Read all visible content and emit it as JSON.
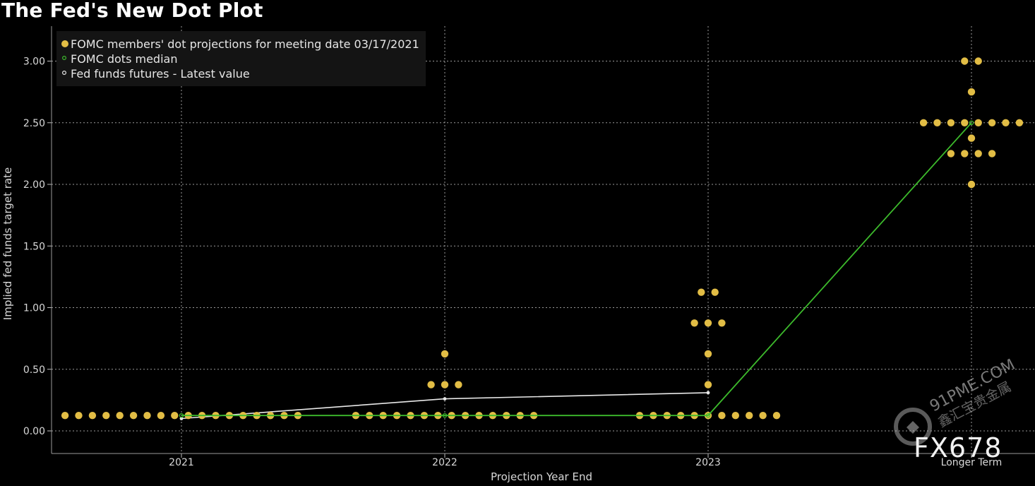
{
  "chart_data": {
    "type": "scatter",
    "title": "The Fed's New Dot Plot",
    "xlabel": "Projection Year End",
    "ylabel": "Implied fed funds target rate",
    "categories": [
      "2021",
      "2022",
      "2023",
      "Longer Term"
    ],
    "ylim": [
      0,
      3.25
    ],
    "yticks": [
      "0.00",
      "0.50",
      "1.00",
      "1.50",
      "2.00",
      "2.50",
      "3.00"
    ],
    "grid": true,
    "legend_position": "top-left",
    "series": [
      {
        "name": "FOMC members' dot projections for meeting date 03/17/2021",
        "marker": "dot",
        "color": "#e2bd45",
        "points": [
          {
            "category": "2021",
            "y": 0.125,
            "count": 18
          },
          {
            "category": "2022",
            "y": 0.125,
            "count": 14
          },
          {
            "category": "2022",
            "y": 0.375,
            "count": 3
          },
          {
            "category": "2022",
            "y": 0.625,
            "count": 1
          },
          {
            "category": "2023",
            "y": 0.125,
            "count": 11
          },
          {
            "category": "2023",
            "y": 0.375,
            "count": 1
          },
          {
            "category": "2023",
            "y": 0.625,
            "count": 1
          },
          {
            "category": "2023",
            "y": 0.875,
            "count": 3
          },
          {
            "category": "2023",
            "y": 1.125,
            "count": 2
          },
          {
            "category": "Longer Term",
            "y": 2.0,
            "count": 1
          },
          {
            "category": "Longer Term",
            "y": 2.25,
            "count": 4
          },
          {
            "category": "Longer Term",
            "y": 2.375,
            "count": 1
          },
          {
            "category": "Longer Term",
            "y": 2.5,
            "count": 8
          },
          {
            "category": "Longer Term",
            "y": 2.75,
            "count": 1
          },
          {
            "category": "Longer Term",
            "y": 3.0,
            "count": 2
          }
        ]
      },
      {
        "name": "FOMC dots median",
        "marker": "line",
        "color": "#3dbb2c",
        "values": [
          0.125,
          0.125,
          0.125,
          2.5
        ]
      },
      {
        "name": "Fed funds futures - Latest value",
        "marker": "line",
        "color": "#e8e8e8",
        "values": [
          0.1,
          0.26,
          0.31
        ]
      }
    ]
  },
  "watermark": {
    "brand": "FX678",
    "site": "91PME.COM",
    "cn": "鑫汇宝贵金属"
  },
  "colors": {
    "background": "#000000",
    "grid": "#9a9a9a",
    "dots": "#e2bd45",
    "median": "#3dbb2c",
    "futures": "#e8e8e8",
    "legend_bg": "#141414"
  }
}
